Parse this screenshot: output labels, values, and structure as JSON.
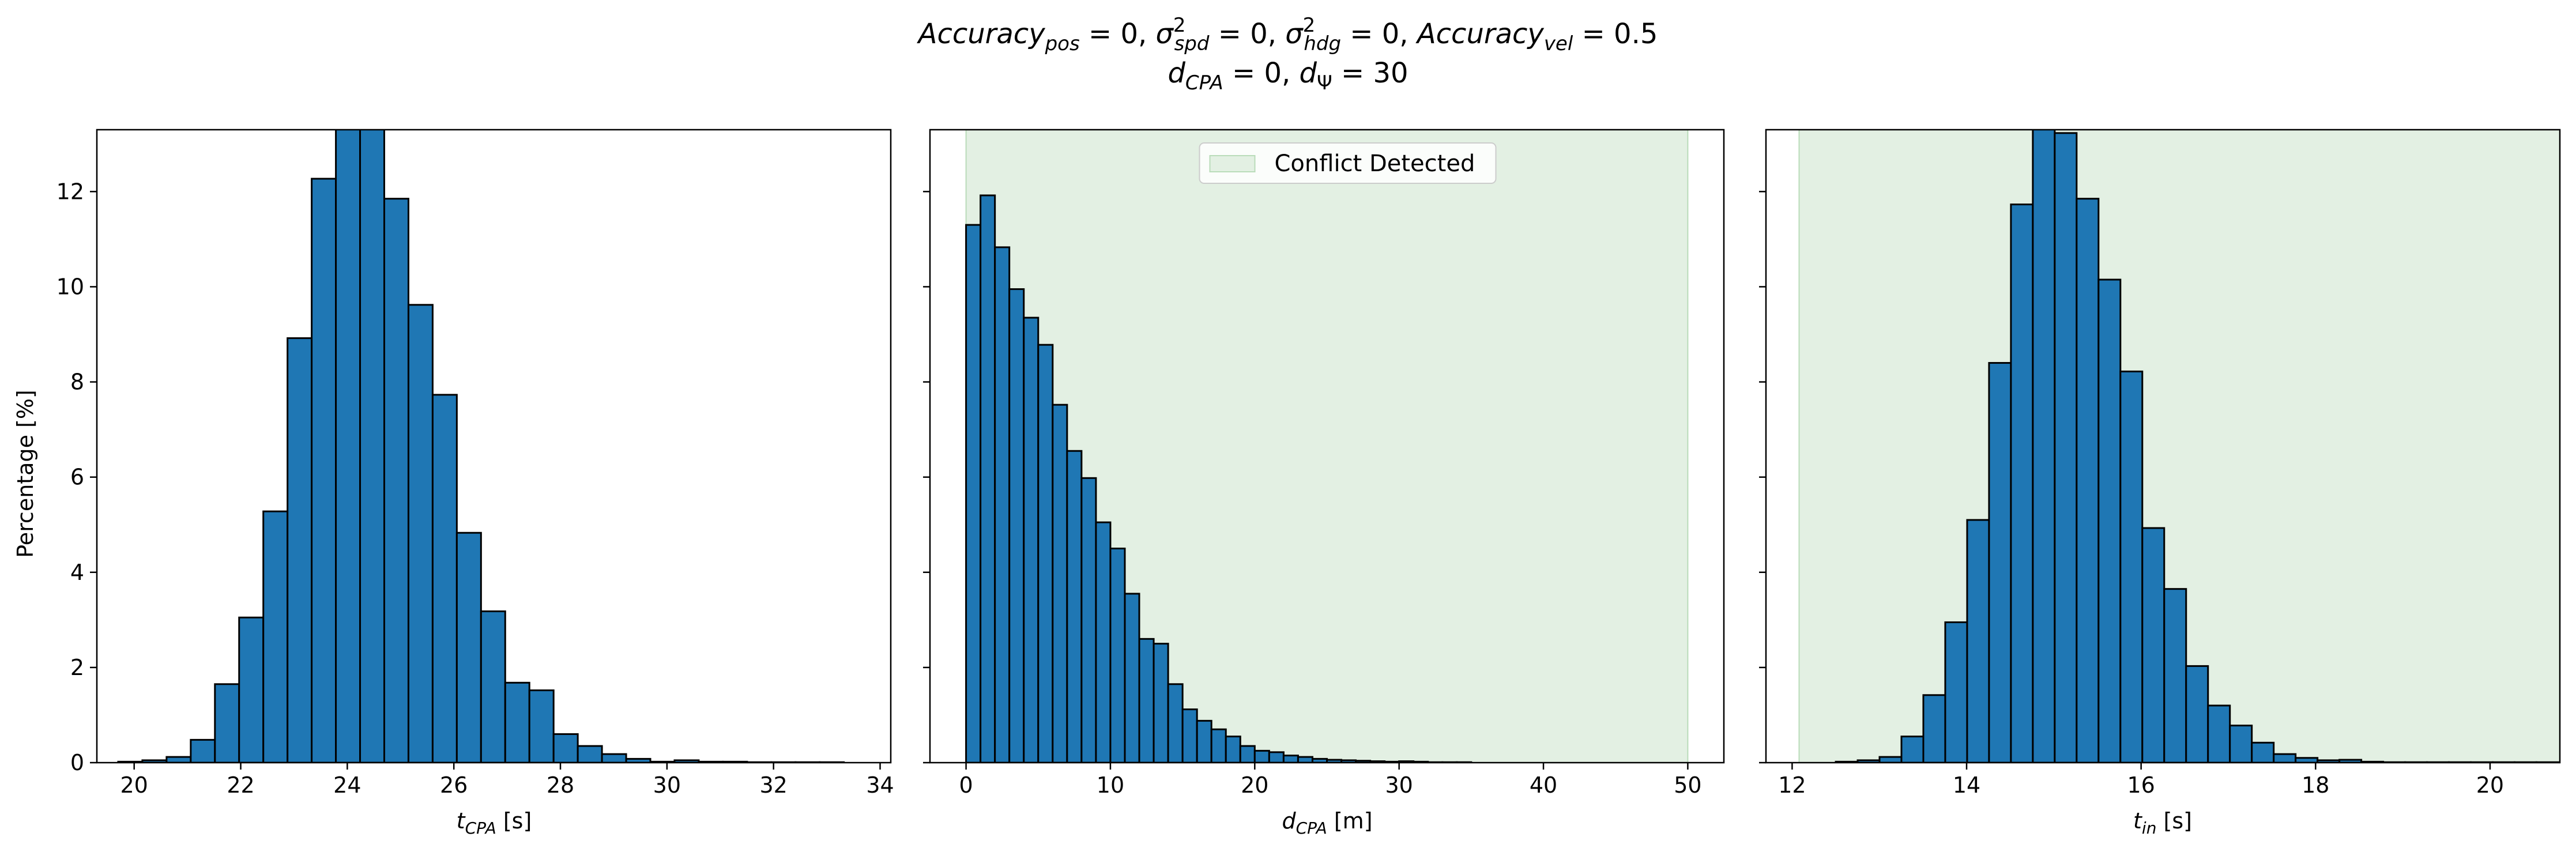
{
  "title": {
    "line1": {
      "acc_pos_base": "Accuracy",
      "acc_pos_sub": "pos",
      "acc_pos_eq": " = 0, ",
      "sig_spd_base": "σ",
      "sig_spd_sup": "2",
      "sig_spd_sub": "spd",
      "sig_spd_eq": " = 0, ",
      "sig_hdg_base": "σ",
      "sig_hdg_sup": "2",
      "sig_hdg_sub": "hdg",
      "sig_hdg_eq": " = 0, ",
      "acc_vel_base": "Accuracy",
      "acc_vel_sub": "vel",
      "acc_vel_eq": " = 0.5"
    },
    "line2": {
      "dcpa_base": "d",
      "dcpa_sub": "CPA",
      "dcpa_eq": " = 0, ",
      "dpsi_base": "d",
      "dpsi_sub": "Ψ",
      "dpsi_eq": " = 30"
    }
  },
  "colors": {
    "bar": "#1f77b4",
    "edge": "#000000",
    "conflict_fill": "#e3f0e3",
    "conflict_edge": "#b9dcb9"
  },
  "chart_data": [
    {
      "type": "bar",
      "panel": "t_cpa",
      "xlabel_base": "t",
      "xlabel_sub": "CPA",
      "xlabel_unit": " [s]",
      "ylabel": "Percentage [%]",
      "xlim": [
        19.3,
        34.2
      ],
      "ylim": [
        0,
        13.3
      ],
      "xticks": [
        20,
        22,
        24,
        26,
        28,
        30,
        32,
        34
      ],
      "yticks": [
        0,
        2,
        4,
        6,
        8,
        10,
        12
      ],
      "bin_start": 19.7,
      "bin_width": 0.454,
      "values": [
        0.02,
        0.05,
        0.12,
        0.48,
        1.65,
        3.05,
        5.28,
        8.92,
        12.27,
        13.6,
        13.6,
        11.85,
        9.62,
        7.73,
        4.83,
        3.18,
        1.68,
        1.52,
        0.6,
        0.35,
        0.18,
        0.08,
        0.02,
        0.05,
        0.02,
        0.02,
        0.01,
        0.01,
        0.01,
        0.01
      ]
    },
    {
      "type": "bar",
      "panel": "d_cpa",
      "xlabel_base": "d",
      "xlabel_sub": "CPA",
      "xlabel_unit": " [m]",
      "xlim": [
        -2.5,
        52.5
      ],
      "ylim": [
        0,
        13.3
      ],
      "xticks": [
        0,
        10,
        20,
        30,
        40,
        50
      ],
      "yticks": [
        0,
        2,
        4,
        6,
        8,
        10,
        12
      ],
      "conflict_region": [
        0,
        50
      ],
      "legend": {
        "label": "Conflict Detected",
        "position": "upper center"
      },
      "bin_start": 0,
      "bin_width": 1,
      "values": [
        11.3,
        11.92,
        10.83,
        9.95,
        9.35,
        8.78,
        7.52,
        6.55,
        5.98,
        5.05,
        4.5,
        3.55,
        2.6,
        2.5,
        1.65,
        1.12,
        0.88,
        0.7,
        0.55,
        0.35,
        0.25,
        0.22,
        0.15,
        0.12,
        0.08,
        0.06,
        0.05,
        0.04,
        0.03,
        0.02,
        0.03,
        0.02,
        0.01,
        0.01,
        0.01
      ]
    },
    {
      "type": "bar",
      "panel": "t_in",
      "xlabel_base": "t",
      "xlabel_sub": "in",
      "xlabel_unit": " [s]",
      "xlim": [
        11.7,
        20.8
      ],
      "ylim": [
        0,
        13.3
      ],
      "xticks": [
        12,
        14,
        16,
        18,
        20
      ],
      "yticks": [
        0,
        2,
        4,
        6,
        8,
        10,
        12
      ],
      "conflict_region": [
        12.08,
        20.8
      ],
      "bin_start": 12.5,
      "bin_width": 0.251,
      "values": [
        0.02,
        0.05,
        0.12,
        0.55,
        1.42,
        2.95,
        5.1,
        8.4,
        11.73,
        13.6,
        13.23,
        11.85,
        10.15,
        8.22,
        4.93,
        3.65,
        2.03,
        1.2,
        0.78,
        0.42,
        0.18,
        0.1,
        0.05,
        0.06,
        0.02,
        0.01,
        0.01,
        0.01,
        0.01,
        0.01,
        0.01,
        0.01,
        0.01
      ]
    }
  ]
}
